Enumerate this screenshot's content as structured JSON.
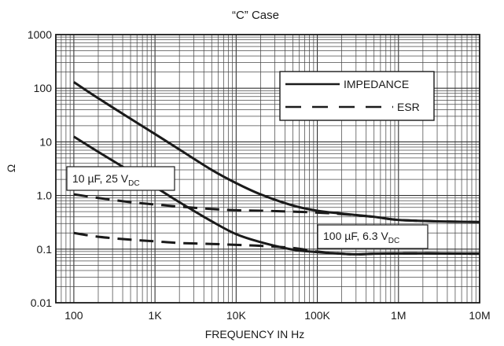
{
  "chart_data": {
    "type": "line",
    "title": "“C” Case",
    "xlabel": "FREQUENCY IN Hz",
    "ylabel": "Ω",
    "x_scale": "log",
    "y_scale": "log",
    "xlim": [
      60,
      10000000
    ],
    "ylim": [
      0.01,
      1000
    ],
    "x_ticks": [
      100,
      1000,
      10000,
      100000,
      1000000,
      10000000
    ],
    "x_tick_labels": [
      "100",
      "1K",
      "10K",
      "100K",
      "1M",
      "10M"
    ],
    "y_ticks": [
      0.01,
      0.1,
      1,
      10,
      100,
      1000
    ],
    "y_tick_labels": [
      "0.01",
      "0.1",
      "1.0",
      "10",
      "100",
      "1000"
    ],
    "grid": true,
    "legend": {
      "position": "top-right",
      "entries": [
        {
          "label": "IMPEDANCE",
          "style": "solid"
        },
        {
          "label": "ESR",
          "style": "dashed"
        }
      ]
    },
    "annotations": [
      {
        "id": "cap-10uf",
        "text": "10 µF, 25 V",
        "subscript": "DC"
      },
      {
        "id": "cap-100uf",
        "text": "100 µF, 6.3 V",
        "subscript": "DC"
      }
    ],
    "series": [
      {
        "group": "10 µF, 25 V DC",
        "kind": "IMPEDANCE",
        "style": "solid",
        "x": [
          100,
          200,
          500,
          1000,
          2000,
          5000,
          10000,
          20000,
          50000,
          100000,
          200000,
          500000,
          1000000,
          3000000,
          10000000
        ],
        "y": [
          130,
          65,
          27,
          14,
          7.2,
          3,
          1.7,
          1.05,
          0.65,
          0.52,
          0.46,
          0.4,
          0.35,
          0.33,
          0.32
        ]
      },
      {
        "group": "10 µF, 25 V DC",
        "kind": "ESR",
        "style": "dashed",
        "x": [
          100,
          200,
          500,
          1000,
          2000,
          5000,
          10000,
          20000,
          50000,
          100000,
          200000,
          500000,
          1000000,
          3000000,
          10000000
        ],
        "y": [
          1.05,
          0.9,
          0.75,
          0.68,
          0.62,
          0.56,
          0.53,
          0.52,
          0.5,
          0.48,
          0.45,
          0.4,
          0.35,
          0.33,
          0.32
        ]
      },
      {
        "group": "100 µF, 6.3 V DC",
        "kind": "IMPEDANCE",
        "style": "solid",
        "x": [
          100,
          200,
          500,
          1000,
          2000,
          5000,
          10000,
          20000,
          50000,
          100000,
          200000,
          300000,
          500000,
          1000000,
          3000000,
          10000000
        ],
        "y": [
          12.5,
          6.5,
          2.8,
          1.45,
          0.75,
          0.33,
          0.19,
          0.135,
          0.098,
          0.088,
          0.082,
          0.08,
          0.082,
          0.083,
          0.083,
          0.082
        ]
      },
      {
        "group": "100 µF, 6.3 V DC",
        "kind": "ESR",
        "style": "dashed",
        "x": [
          100,
          200,
          500,
          1000,
          2000,
          5000,
          10000,
          20000,
          50000,
          100000,
          200000,
          300000,
          500000,
          1000000,
          3000000,
          10000000
        ],
        "y": [
          0.2,
          0.17,
          0.15,
          0.14,
          0.13,
          0.125,
          0.12,
          0.115,
          0.105,
          0.09,
          0.082,
          0.08,
          0.082,
          0.083,
          0.083,
          0.082
        ]
      }
    ]
  }
}
